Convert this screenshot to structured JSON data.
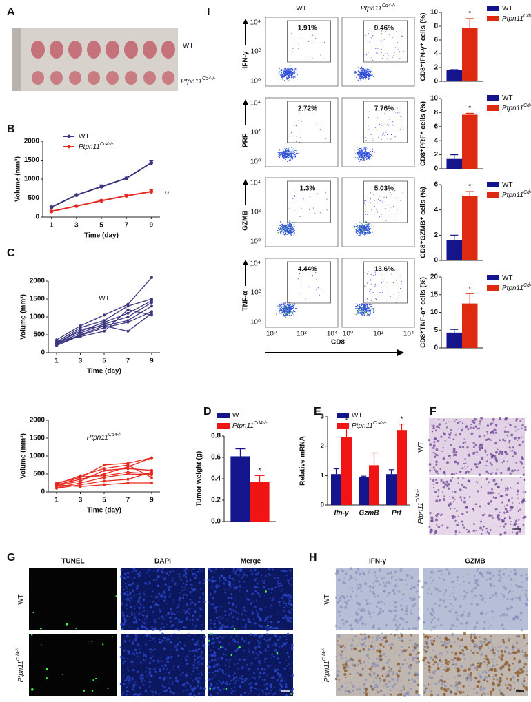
{
  "panels": [
    "A",
    "B",
    "C",
    "D",
    "E",
    "F",
    "G",
    "H",
    "I"
  ],
  "genotypes": {
    "wt": "WT",
    "ko": "Ptpn11",
    "ko_sup": "Cd4-/-"
  },
  "histology_g": {
    "headers": [
      "TUNEL",
      "DAPI",
      "Merge"
    ]
  },
  "histology_h": {
    "headers": [
      "IFN-γ",
      "GZMB"
    ]
  },
  "flow": {
    "rows": [
      {
        "label": "IFN-γ",
        "gates": [
          "1.91%",
          "9.46%"
        ]
      },
      {
        "label": "PRF",
        "gates": [
          "2.72%",
          "7.76%"
        ]
      },
      {
        "label": "GZMB",
        "gates": [
          "1.3%",
          "5.03%"
        ]
      },
      {
        "label": "TNF-α",
        "gates": [
          "4.44%",
          "13.6%"
        ]
      }
    ],
    "yticks": [
      "10⁴",
      "10²",
      "10⁰"
    ],
    "xticks": [
      "10⁰",
      "10²",
      "10⁴"
    ],
    "xlabel": "CD8"
  },
  "chart_data": [
    {
      "type": "line",
      "xlabel": "Time (day)",
      "ylabel": "Volume (mm³)",
      "x": [
        1,
        3,
        5,
        7,
        9
      ],
      "xlim": [
        0.3,
        9.7
      ],
      "xticks": [
        1,
        3,
        5,
        7,
        9
      ],
      "ylim": [
        0,
        2000
      ],
      "yticks": [
        0,
        500,
        1000,
        1500,
        2000
      ],
      "annotation": "**",
      "legend": "upper left",
      "series": [
        {
          "name": "WT",
          "color": "#3b3680",
          "values": [
            260,
            580,
            800,
            1020,
            1430
          ],
          "errors": [
            20,
            30,
            50,
            60,
            70
          ]
        },
        {
          "name": "Ptpn11",
          "name_sup": "Cd4-/-",
          "color": "#e8281e",
          "values": [
            150,
            290,
            430,
            560,
            670
          ],
          "errors": [
            15,
            20,
            25,
            40,
            50
          ]
        }
      ]
    },
    {
      "type": "line",
      "title": "WT",
      "xlabel": "Time (day)",
      "ylabel": "Volume (mm³)",
      "x": [
        1,
        3,
        5,
        7,
        9
      ],
      "xlim": [
        0.3,
        9.7
      ],
      "xticks": [
        1,
        3,
        5,
        7,
        9
      ],
      "ylim": [
        0,
        2000
      ],
      "yticks": [
        0,
        500,
        1000,
        1500,
        2000
      ],
      "series": [
        {
          "color": "#3b3680",
          "values": [
            360,
            750,
            1050,
            1350,
            2100
          ]
        },
        {
          "color": "#3b3680",
          "values": [
            300,
            700,
            900,
            1300,
            1500
          ]
        },
        {
          "color": "#3b3680",
          "values": [
            280,
            600,
            850,
            1100,
            1450
          ]
        },
        {
          "color": "#3b3680",
          "values": [
            250,
            550,
            800,
            1000,
            1400
          ]
        },
        {
          "color": "#3b3680",
          "values": [
            230,
            500,
            750,
            900,
            1300
          ]
        },
        {
          "color": "#3b3680",
          "values": [
            200,
            480,
            700,
            850,
            1150
          ]
        },
        {
          "color": "#3b3680",
          "values": [
            260,
            650,
            750,
            600,
            1100
          ]
        },
        {
          "color": "#3b3680",
          "values": [
            320,
            450,
            600,
            1200,
            1050
          ]
        }
      ]
    },
    {
      "type": "line",
      "title": "Ptpn11",
      "title_sup": "Cd4-/-",
      "xlabel": "Time (day)",
      "ylabel": "Volume (mm³)",
      "x": [
        1,
        3,
        5,
        7,
        9
      ],
      "xlim": [
        0.3,
        9.7
      ],
      "xticks": [
        1,
        3,
        5,
        7,
        9
      ],
      "ylim": [
        0,
        2000
      ],
      "yticks": [
        0,
        500,
        1000,
        1500,
        2000
      ],
      "series": [
        {
          "color": "#e8281e",
          "values": [
            250,
            400,
            750,
            800,
            950
          ]
        },
        {
          "color": "#e8281e",
          "values": [
            200,
            350,
            500,
            700,
            950
          ]
        },
        {
          "color": "#e8281e",
          "values": [
            180,
            300,
            600,
            650,
            600
          ]
        },
        {
          "color": "#e8281e",
          "values": [
            150,
            420,
            450,
            550,
            500
          ]
        },
        {
          "color": "#e8281e",
          "values": [
            120,
            250,
            400,
            500,
            480
          ]
        },
        {
          "color": "#e8281e",
          "values": [
            100,
            200,
            300,
            350,
            550
          ]
        },
        {
          "color": "#e8281e",
          "values": [
            200,
            150,
            200,
            250,
            250
          ]
        },
        {
          "color": "#e8281e",
          "values": [
            220,
            450,
            650,
            750,
            400
          ]
        }
      ]
    },
    {
      "type": "bar",
      "ylabel": "Tumor weight (g)",
      "categories": [
        null
      ],
      "ylim": [
        0,
        0.8
      ],
      "yticks": [
        {
          "value": 0,
          "label": "0.0"
        },
        0.2,
        0.4,
        0.6,
        0.8
      ],
      "significance": [
        "*"
      ],
      "series": [
        {
          "name": "WT",
          "color": "#14148c",
          "values": [
            0.61
          ],
          "errors": [
            0.07
          ]
        },
        {
          "name": "Ptpn11",
          "name_sup": "Cd4-/-",
          "color": "#f01414",
          "values": [
            0.37
          ],
          "errors": [
            0.06
          ]
        }
      ]
    },
    {
      "type": "bar",
      "ylabel": "Relative mRNA",
      "categories": [
        "Ifn-γ",
        "GzmB",
        "Prf"
      ],
      "ylim": [
        0,
        3
      ],
      "yticks": [
        0,
        1,
        2,
        3
      ],
      "significance": [
        "*",
        null,
        "*"
      ],
      "series": [
        {
          "name": "WT",
          "color": "#14148c",
          "values": [
            1.05,
            0.95,
            1.05
          ],
          "errors": [
            0.18,
            0.03,
            0.15
          ]
        },
        {
          "name": "Ptpn11",
          "name_sup": "Cd4-/-",
          "color": "#f01414",
          "values": [
            2.3,
            1.35,
            2.55
          ],
          "errors": [
            0.4,
            0.42,
            0.2
          ]
        }
      ]
    },
    {
      "type": "bar",
      "ylabel": "CD8⁺IFN-γ⁺ cells (%)",
      "categories": [
        null
      ],
      "ylim": [
        0,
        10
      ],
      "yticks": [
        0,
        2,
        4,
        6,
        8,
        10
      ],
      "significance": [
        "*"
      ],
      "series": [
        {
          "name": "WT",
          "color": "#14148c",
          "values": [
            1.6
          ],
          "errors": [
            0.1
          ]
        },
        {
          "name": "Ptpn11",
          "name_sup": "Cd4-/-",
          "color": "#dd2a10",
          "values": [
            7.7
          ],
          "errors": [
            1.4
          ]
        }
      ]
    },
    {
      "type": "bar",
      "ylabel": "CD8⁺PRF⁺ cells (%)",
      "categories": [
        null
      ],
      "ylim": [
        0,
        10
      ],
      "yticks": [
        0,
        2,
        4,
        6,
        8,
        10
      ],
      "significance": [
        "*"
      ],
      "series": [
        {
          "name": "WT",
          "color": "#14148c",
          "values": [
            1.4
          ],
          "errors": [
            0.6
          ]
        },
        {
          "name": "Ptpn11",
          "name_sup": "Cd4-/-",
          "color": "#dd2a10",
          "values": [
            7.7
          ],
          "errors": [
            0.2
          ]
        }
      ]
    },
    {
      "type": "bar",
      "ylabel": "CD8⁺GZMB⁺ cells (%)",
      "categories": [
        null
      ],
      "ylim": [
        0,
        6
      ],
      "yticks": [
        0,
        2,
        4,
        6
      ],
      "significance": [
        "*"
      ],
      "series": [
        {
          "name": "WT",
          "color": "#14148c",
          "values": [
            1.6
          ],
          "errors": [
            0.4
          ]
        },
        {
          "name": "Ptpn11",
          "name_sup": "Cd4-/-",
          "color": "#dd2a10",
          "values": [
            5.1
          ],
          "errors": [
            0.35
          ]
        }
      ]
    },
    {
      "type": "bar",
      "ylabel": "CD8⁺TNF-α⁺ cells (%)",
      "categories": [
        null
      ],
      "ylim": [
        0,
        20
      ],
      "yticks": [
        0,
        5,
        10,
        15,
        20
      ],
      "significance": [
        "*"
      ],
      "series": [
        {
          "name": "WT",
          "color": "#14148c",
          "values": [
            4.3
          ],
          "errors": [
            0.9
          ]
        },
        {
          "name": "Ptpn11",
          "name_sup": "Cd4-/-",
          "color": "#dd2a10",
          "values": [
            12.5
          ],
          "errors": [
            2.8
          ]
        }
      ]
    }
  ]
}
